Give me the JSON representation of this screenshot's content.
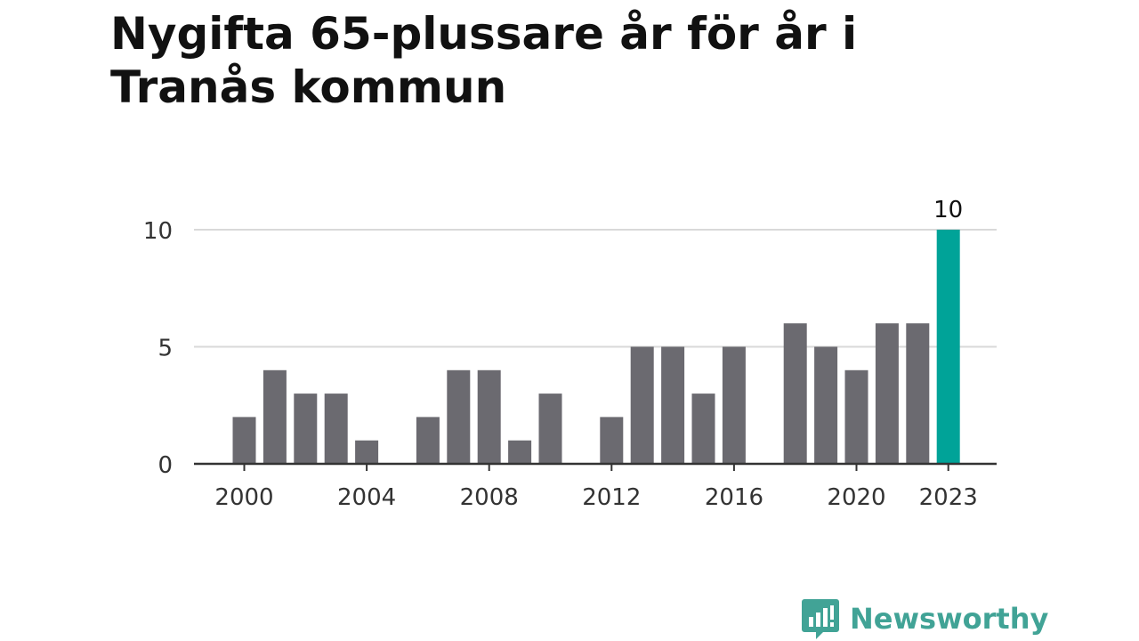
{
  "title": "Nygifta 65-plussare år för år i Tranås kommun",
  "brand": {
    "name": "Newsworthy",
    "icon": "newsworthy-logo-icon",
    "color": "#41a396"
  },
  "colors": {
    "bar": "#6b6a70",
    "highlight": "#00a398",
    "grid": "#d9d9d9",
    "axis": "#333333"
  },
  "chart_data": {
    "type": "bar",
    "x": [
      2000,
      2001,
      2002,
      2003,
      2004,
      2005,
      2006,
      2007,
      2008,
      2009,
      2010,
      2011,
      2012,
      2013,
      2014,
      2015,
      2016,
      2017,
      2018,
      2019,
      2020,
      2021,
      2022,
      2023
    ],
    "values": [
      2,
      4,
      3,
      3,
      1,
      0,
      2,
      4,
      4,
      1,
      3,
      0,
      2,
      5,
      5,
      3,
      5,
      0,
      6,
      5,
      4,
      6,
      6,
      10
    ],
    "highlight": {
      "x": 2023,
      "value": 10,
      "label": "10"
    },
    "xticks": [
      "2000",
      "2004",
      "2008",
      "2012",
      "2016",
      "2020",
      "2023"
    ],
    "yticks": [
      "0",
      "5",
      "10"
    ],
    "ylim": [
      0,
      10
    ],
    "grid": "horizontal",
    "title": "Nygifta 65-plussare år för år i Tranås kommun",
    "xlabel": "",
    "ylabel": ""
  }
}
